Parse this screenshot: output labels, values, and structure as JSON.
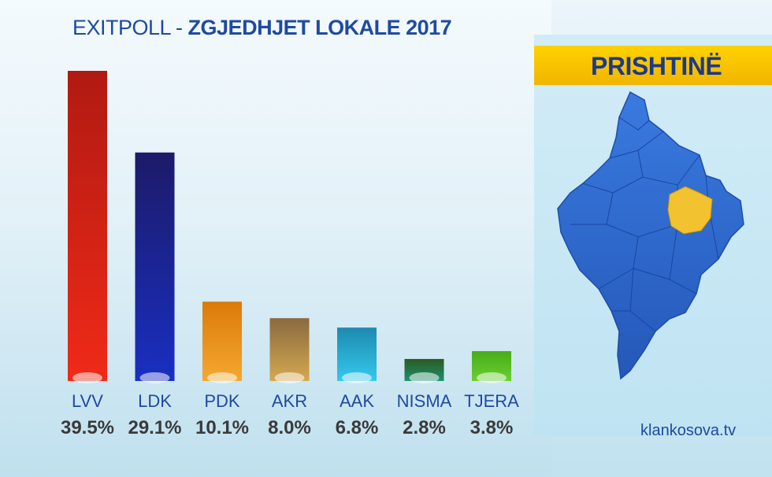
{
  "header": {
    "title_prefix": "EXITPOLL - ",
    "title_main": "ZGJEDHJET LOKALE 2017"
  },
  "region": {
    "name": "PRISHTINË"
  },
  "source": "klankosova.tv",
  "colors": {
    "title": "#1f4aa0",
    "banner": "#ffd200",
    "map_fill": "#2f6ad0",
    "map_highlight": "#f2c230"
  },
  "chart_data": {
    "type": "bar",
    "title": "EXITPOLL - ZGJEDHJET LOKALE 2017",
    "categories": [
      "LVV",
      "LDK",
      "PDK",
      "AKR",
      "AAK",
      "NISMA",
      "TJERA"
    ],
    "values": [
      39.5,
      29.1,
      10.1,
      8.0,
      6.8,
      2.8,
      3.8
    ],
    "value_labels": [
      "39.5%",
      "29.1%",
      "10.1%",
      "8.0%",
      "6.8%",
      "2.8%",
      "3.8%"
    ],
    "bar_colors": [
      [
        "#b01a12",
        "#f02a18"
      ],
      [
        "#1c1a68",
        "#1a2fc2"
      ],
      [
        "#dc7a08",
        "#f4a830"
      ],
      [
        "#8a6a40",
        "#d4a850"
      ],
      [
        "#1e8ab0",
        "#34c8ec"
      ],
      [
        "#2a5a20",
        "#1e9070"
      ],
      [
        "#48ac18",
        "#68d030"
      ]
    ],
    "xlabel": "",
    "ylabel": "",
    "grid": false,
    "legend": "none"
  }
}
